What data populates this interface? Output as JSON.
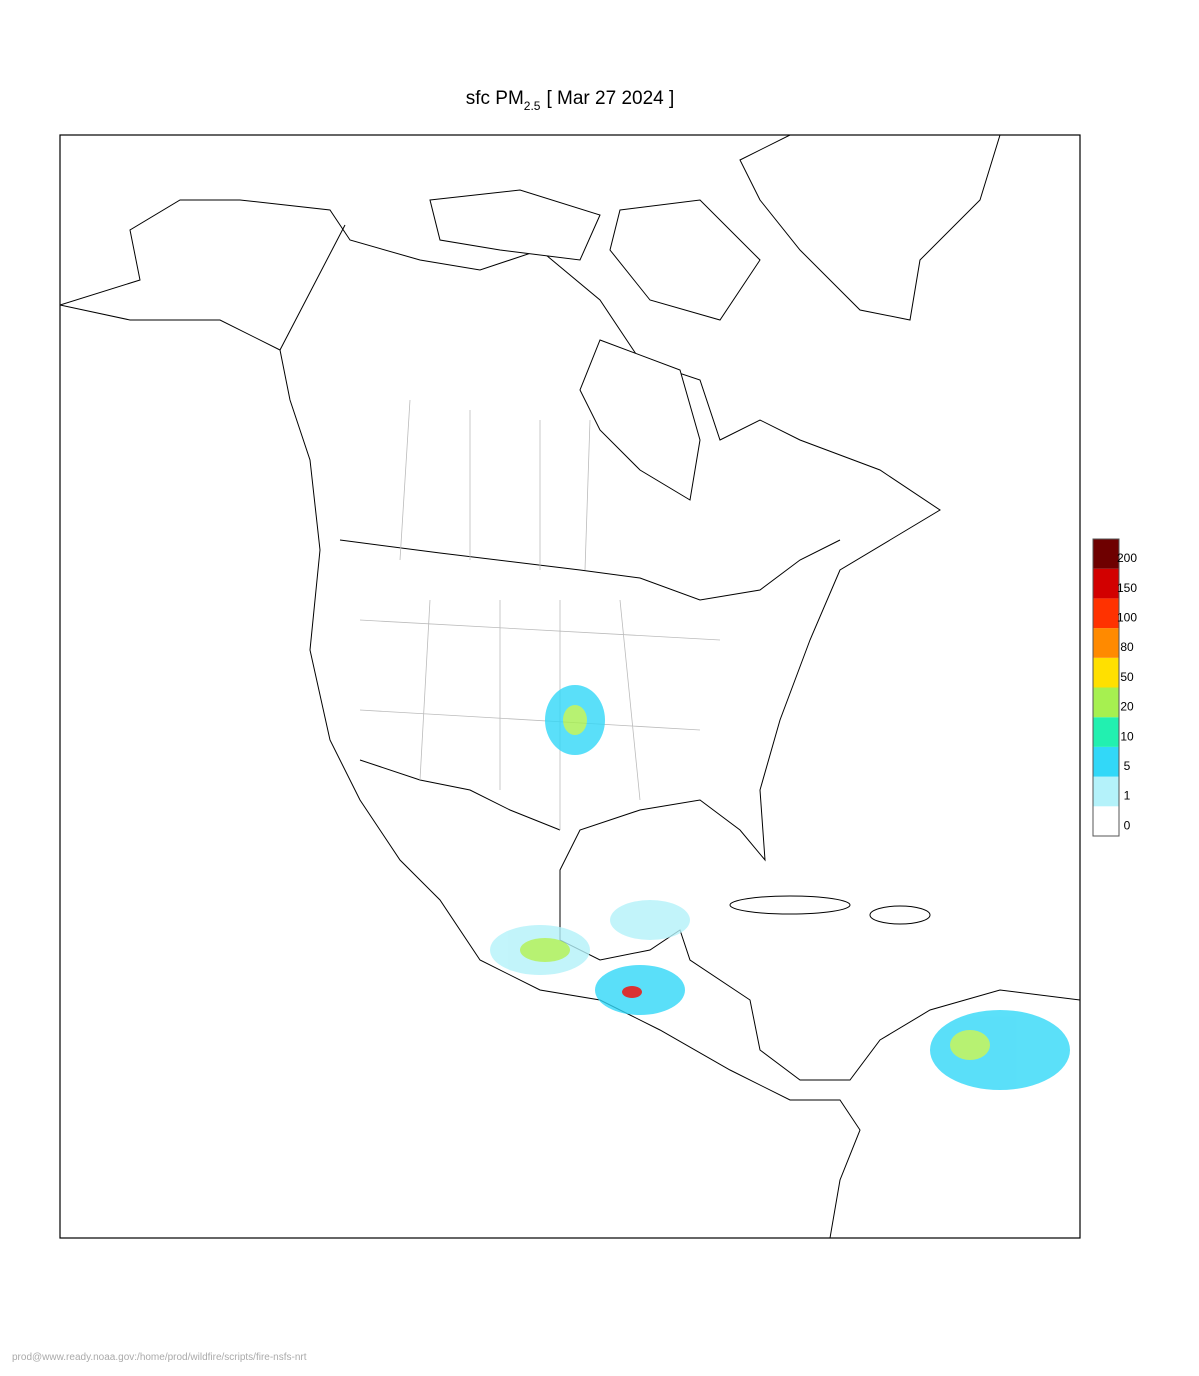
{
  "title": {
    "main": "sfc PM",
    "subscript": "2.5",
    "date": "[ Mar 27 2024 ]"
  },
  "colorbar": {
    "levels": [
      0,
      1,
      5,
      10,
      20,
      50,
      80,
      100,
      150,
      200
    ],
    "colors": [
      "#ffffff",
      "#b4f2fa",
      "#32d8f8",
      "#22f0b0",
      "#a6f050",
      "#ffe000",
      "#ff8a00",
      "#ff3200",
      "#d20000",
      "#6e0000"
    ]
  },
  "footer": "prod@www.ready.noaa.gov:/home/prod/wildfire/scripts/fire-nsfs-nrt"
}
